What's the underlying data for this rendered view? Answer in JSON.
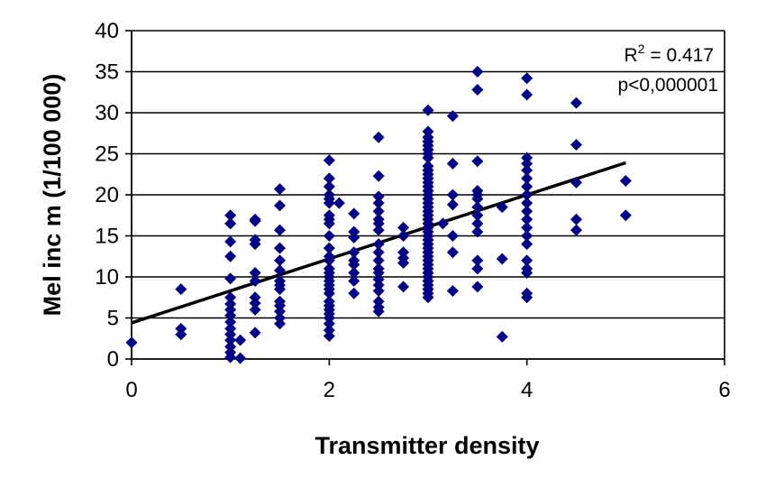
{
  "chart_data": {
    "type": "scatter",
    "xlabel": "Transmitter density",
    "ylabel": "Mel inc m (1/100 000)",
    "xlim": [
      0,
      6
    ],
    "ylim": [
      0,
      40
    ],
    "x_ticks": [
      "0",
      "2",
      "4",
      "6"
    ],
    "y_ticks": [
      "0",
      "5",
      "10",
      "15",
      "20",
      "25",
      "30",
      "35",
      "40"
    ],
    "grid": "horizontal",
    "legend": "none",
    "marker": "diamond",
    "point_color": "#000080",
    "annotations": {
      "r2_base": "R",
      "r2_exp": "2",
      "r2_value": " = 0.417",
      "p_value": "p<0,000001"
    },
    "trendline": {
      "x": [
        0,
        5
      ],
      "y": [
        4.4,
        23.9
      ]
    },
    "points": [
      [
        0,
        2.0
      ],
      [
        0.5,
        8.5
      ],
      [
        0.5,
        3.7
      ],
      [
        0.5,
        3.0
      ],
      [
        1,
        17.5
      ],
      [
        1,
        16.5
      ],
      [
        1,
        14.3
      ],
      [
        1,
        12.5
      ],
      [
        1,
        9.8
      ],
      [
        1,
        7.5
      ],
      [
        1,
        6.7
      ],
      [
        1,
        6.0
      ],
      [
        1,
        5.3
      ],
      [
        1,
        4.5
      ],
      [
        1,
        3.7
      ],
      [
        1,
        3.0
      ],
      [
        1,
        2.3
      ],
      [
        1,
        1.5
      ],
      [
        1,
        0.8
      ],
      [
        1,
        0.2
      ],
      [
        1.1,
        2.3
      ],
      [
        1.1,
        0.1
      ],
      [
        1.25,
        17.0
      ],
      [
        1.25,
        16.8
      ],
      [
        1.25,
        14.5
      ],
      [
        1.25,
        14.0
      ],
      [
        1.25,
        10.5
      ],
      [
        1.25,
        9.5
      ],
      [
        1.25,
        7.5
      ],
      [
        1.25,
        6.8
      ],
      [
        1.25,
        6.0
      ],
      [
        1.25,
        3.2
      ],
      [
        1.5,
        20.7
      ],
      [
        1.5,
        18.7
      ],
      [
        1.5,
        15.7
      ],
      [
        1.5,
        13.5
      ],
      [
        1.5,
        12.0
      ],
      [
        1.5,
        10.8
      ],
      [
        1.5,
        9.5
      ],
      [
        1.5,
        9.0
      ],
      [
        1.5,
        8.5
      ],
      [
        1.5,
        7.0
      ],
      [
        1.5,
        6.5
      ],
      [
        1.5,
        5.8
      ],
      [
        1.5,
        5.0
      ],
      [
        1.5,
        4.3
      ],
      [
        2,
        24.2
      ],
      [
        2,
        22.0
      ],
      [
        2,
        21.0
      ],
      [
        2,
        20.0
      ],
      [
        2,
        19.5
      ],
      [
        2,
        19.0
      ],
      [
        2,
        17.5
      ],
      [
        2,
        17.0
      ],
      [
        2,
        16.5
      ],
      [
        2,
        15.0
      ],
      [
        2,
        13.5
      ],
      [
        2,
        12.5
      ],
      [
        2,
        12.0
      ],
      [
        2,
        11.0
      ],
      [
        2,
        10.5
      ],
      [
        2,
        10.0
      ],
      [
        2,
        9.5
      ],
      [
        2,
        9.0
      ],
      [
        2,
        8.5
      ],
      [
        2,
        8.0
      ],
      [
        2,
        7.0
      ],
      [
        2,
        6.5
      ],
      [
        2,
        6.0
      ],
      [
        2,
        5.5
      ],
      [
        2,
        5.0
      ],
      [
        2,
        4.3
      ],
      [
        2,
        3.5
      ],
      [
        2,
        2.8
      ],
      [
        2.1,
        19.0
      ],
      [
        2.25,
        17.7
      ],
      [
        2.25,
        15.5
      ],
      [
        2.25,
        14.8
      ],
      [
        2.25,
        13.0
      ],
      [
        2.25,
        12.0
      ],
      [
        2.25,
        11.5
      ],
      [
        2.25,
        10.5
      ],
      [
        2.25,
        9.5
      ],
      [
        2.25,
        8.0
      ],
      [
        2.5,
        27.0
      ],
      [
        2.5,
        22.3
      ],
      [
        2.5,
        19.8
      ],
      [
        2.5,
        19.0
      ],
      [
        2.5,
        18.0
      ],
      [
        2.5,
        17.0
      ],
      [
        2.5,
        16.5
      ],
      [
        2.5,
        15.7
      ],
      [
        2.5,
        14.0
      ],
      [
        2.5,
        13.0
      ],
      [
        2.5,
        12.0
      ],
      [
        2.5,
        11.0
      ],
      [
        2.5,
        10.5
      ],
      [
        2.5,
        9.7
      ],
      [
        2.5,
        9.0
      ],
      [
        2.5,
        8.3
      ],
      [
        2.5,
        7.0
      ],
      [
        2.5,
        6.3
      ],
      [
        2.5,
        5.8
      ],
      [
        2.75,
        16.0
      ],
      [
        2.75,
        15.0
      ],
      [
        2.75,
        13.0
      ],
      [
        2.75,
        12.3
      ],
      [
        2.75,
        11.7
      ],
      [
        2.75,
        8.8
      ],
      [
        3,
        30.3
      ],
      [
        3,
        27.7
      ],
      [
        3,
        27.0
      ],
      [
        3,
        26.5
      ],
      [
        3,
        26.0
      ],
      [
        3,
        25.5
      ],
      [
        3,
        25.0
      ],
      [
        3,
        24.5
      ],
      [
        3,
        23.5
      ],
      [
        3,
        23.0
      ],
      [
        3,
        22.5
      ],
      [
        3,
        22.0
      ],
      [
        3,
        21.5
      ],
      [
        3,
        21.0
      ],
      [
        3,
        20.5
      ],
      [
        3,
        20.0
      ],
      [
        3,
        19.5
      ],
      [
        3,
        19.0
      ],
      [
        3,
        18.5
      ],
      [
        3,
        18.0
      ],
      [
        3,
        17.5
      ],
      [
        3,
        17.0
      ],
      [
        3,
        16.5
      ],
      [
        3,
        16.0
      ],
      [
        3,
        15.5
      ],
      [
        3,
        15.0
      ],
      [
        3,
        14.5
      ],
      [
        3,
        14.0
      ],
      [
        3,
        13.5
      ],
      [
        3,
        13.0
      ],
      [
        3,
        12.5
      ],
      [
        3,
        12.0
      ],
      [
        3,
        11.5
      ],
      [
        3,
        11.0
      ],
      [
        3,
        10.5
      ],
      [
        3,
        10.0
      ],
      [
        3,
        9.5
      ],
      [
        3,
        9.0
      ],
      [
        3,
        8.5
      ],
      [
        3,
        8.0
      ],
      [
        3,
        7.5
      ],
      [
        3.15,
        16.5
      ],
      [
        3.25,
        29.6
      ],
      [
        3.25,
        23.8
      ],
      [
        3.25,
        20.0
      ],
      [
        3.25,
        18.8
      ],
      [
        3.25,
        15.0
      ],
      [
        3.25,
        13.0
      ],
      [
        3.25,
        8.3
      ],
      [
        3.5,
        35.0
      ],
      [
        3.5,
        32.8
      ],
      [
        3.5,
        24.1
      ],
      [
        3.5,
        20.5
      ],
      [
        3.5,
        20.0
      ],
      [
        3.5,
        19.5
      ],
      [
        3.5,
        18.5
      ],
      [
        3.5,
        17.5
      ],
      [
        3.5,
        16.5
      ],
      [
        3.5,
        15.5
      ],
      [
        3.5,
        12.0
      ],
      [
        3.5,
        11.0
      ],
      [
        3.5,
        8.8
      ],
      [
        3.75,
        18.5
      ],
      [
        3.75,
        12.2
      ],
      [
        3.75,
        2.7
      ],
      [
        4,
        34.2
      ],
      [
        4,
        32.2
      ],
      [
        4,
        24.5
      ],
      [
        4,
        23.8
      ],
      [
        4,
        23.0
      ],
      [
        4,
        22.0
      ],
      [
        4,
        21.0
      ],
      [
        4,
        20.0
      ],
      [
        4,
        19.0
      ],
      [
        4,
        18.0
      ],
      [
        4,
        17.0
      ],
      [
        4,
        16.0
      ],
      [
        4,
        15.0
      ],
      [
        4,
        14.0
      ],
      [
        4,
        12.0
      ],
      [
        4,
        11.0
      ],
      [
        4,
        10.5
      ],
      [
        4,
        8.0
      ],
      [
        4,
        7.5
      ],
      [
        4.5,
        31.2
      ],
      [
        4.5,
        26.1
      ],
      [
        4.5,
        21.5
      ],
      [
        4.5,
        17.0
      ],
      [
        4.5,
        15.7
      ],
      [
        5,
        21.7
      ],
      [
        5,
        17.5
      ]
    ]
  }
}
